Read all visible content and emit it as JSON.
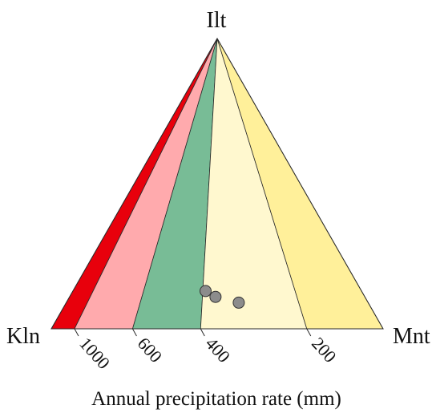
{
  "diagram": {
    "vertices": {
      "top": "Ilt",
      "left": "Kln",
      "right": "Mnt"
    },
    "zones": [
      {
        "name": ">1000",
        "color": "#e8000c",
        "from": 0,
        "to": 0.07
      },
      {
        "name": "1000-600",
        "color": "#ffaaad",
        "from": 0.07,
        "to": 0.245
      },
      {
        "name": "600-400",
        "color": "#78bc96",
        "from": 0.245,
        "to": 0.45
      },
      {
        "name": "400-200",
        "color": "#fff8cf",
        "from": 0.45,
        "to": 0.77
      },
      {
        "name": "<200",
        "color": "#fff09a",
        "from": 0.77,
        "to": 1
      }
    ],
    "precipitation_ticks": [
      {
        "label": "1000",
        "position": 0.07
      },
      {
        "label": "600",
        "position": 0.245
      },
      {
        "label": "400",
        "position": 0.45
      },
      {
        "label": "200",
        "position": 0.77
      }
    ],
    "axis_title": "Annual precipitation rate (mm)",
    "samples": [
      {
        "ilt": 0.13,
        "kln": 0.47,
        "mnt": 0.4
      },
      {
        "ilt": 0.11,
        "kln": 0.45,
        "mnt": 0.44
      },
      {
        "ilt": 0.09,
        "kln": 0.39,
        "mnt": 0.52
      }
    ],
    "sample_color": "#8c8c8c"
  }
}
